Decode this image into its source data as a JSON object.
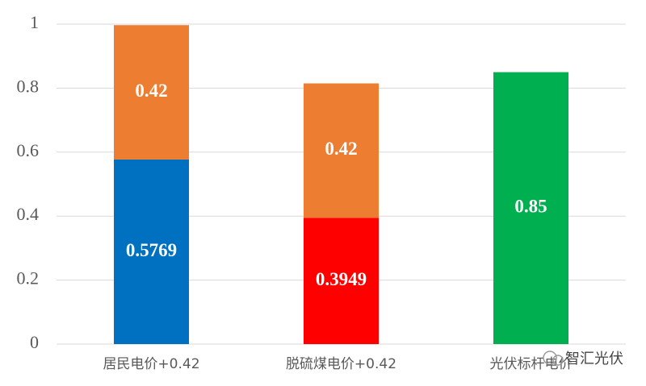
{
  "chart_data": {
    "type": "stacked_bar",
    "categories": [
      "居民电价+0.42",
      "脱硫煤电价+0.42",
      "光伏标杆电价"
    ],
    "series": [
      {
        "colors": [
          "#0070c0",
          "#ff0000",
          "#00b050"
        ],
        "values": [
          0.5769,
          0.3949,
          0.85
        ]
      },
      {
        "color": "#ed7d31",
        "values": [
          0.42,
          0.42,
          null
        ]
      }
    ],
    "ylim": [
      0,
      1
    ],
    "yticks": [
      0,
      0.2,
      0.4,
      0.6,
      0.8,
      1
    ],
    "grid": true
  },
  "watermark": "智汇光伏"
}
